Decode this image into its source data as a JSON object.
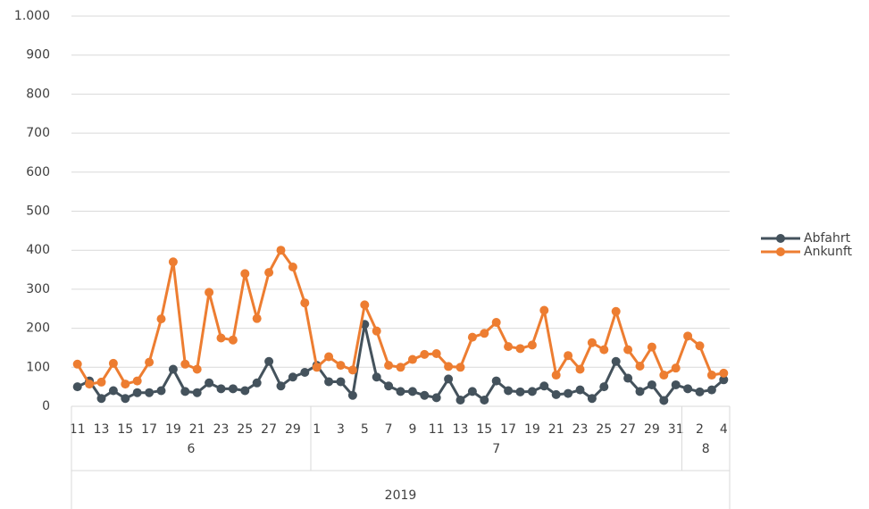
{
  "chart_data": {
    "type": "line",
    "categories": [
      "11",
      null,
      "13",
      null,
      "15",
      null,
      "17",
      null,
      "19",
      null,
      "21",
      null,
      "23",
      null,
      "25",
      null,
      "27",
      null,
      "29",
      null,
      "1",
      null,
      "3",
      null,
      "5",
      null,
      "7",
      null,
      "9",
      null,
      "11",
      null,
      "13",
      null,
      "15",
      null,
      "17",
      null,
      "19",
      null,
      "21",
      null,
      "23",
      null,
      "25",
      null,
      "27",
      null,
      "29",
      null,
      "31",
      null,
      "2",
      null,
      "4"
    ],
    "x_groups": [
      {
        "label": "6",
        "span": 20
      },
      {
        "label": "7",
        "span": 31
      },
      {
        "label": "8",
        "span": 4
      }
    ],
    "x_group_top": "2019",
    "series": [
      {
        "name": "Abfahrt",
        "color": "#44525c",
        "values": [
          50,
          65,
          20,
          40,
          20,
          35,
          35,
          40,
          95,
          38,
          35,
          60,
          45,
          45,
          40,
          60,
          115,
          52,
          75,
          87,
          105,
          63,
          63,
          28,
          210,
          75,
          52,
          38,
          38,
          28,
          22,
          70,
          16,
          38,
          16,
          65,
          40,
          37,
          38,
          52,
          30,
          33,
          42,
          20,
          50,
          115,
          72,
          38,
          55,
          15,
          55,
          45,
          37,
          42,
          68
        ]
      },
      {
        "name": "Ankunft",
        "color": "#ed7d31",
        "values": [
          108,
          57,
          62,
          110,
          57,
          65,
          113,
          224,
          370,
          108,
          95,
          292,
          175,
          170,
          340,
          225,
          343,
          400,
          357,
          265,
          100,
          127,
          105,
          93,
          260,
          193,
          105,
          100,
          120,
          133,
          135,
          102,
          100,
          177,
          187,
          215,
          153,
          148,
          157,
          246,
          80,
          130,
          95,
          163,
          145,
          243,
          145,
          103,
          152,
          80,
          98,
          180,
          155,
          80,
          85
        ]
      }
    ],
    "ylim": [
      0,
      1000
    ],
    "yticks": [
      0,
      100,
      200,
      300,
      400,
      500,
      600,
      700,
      800,
      900,
      {
        "value": 1000,
        "label": "1.000"
      }
    ],
    "grid": true,
    "legend": "right"
  }
}
